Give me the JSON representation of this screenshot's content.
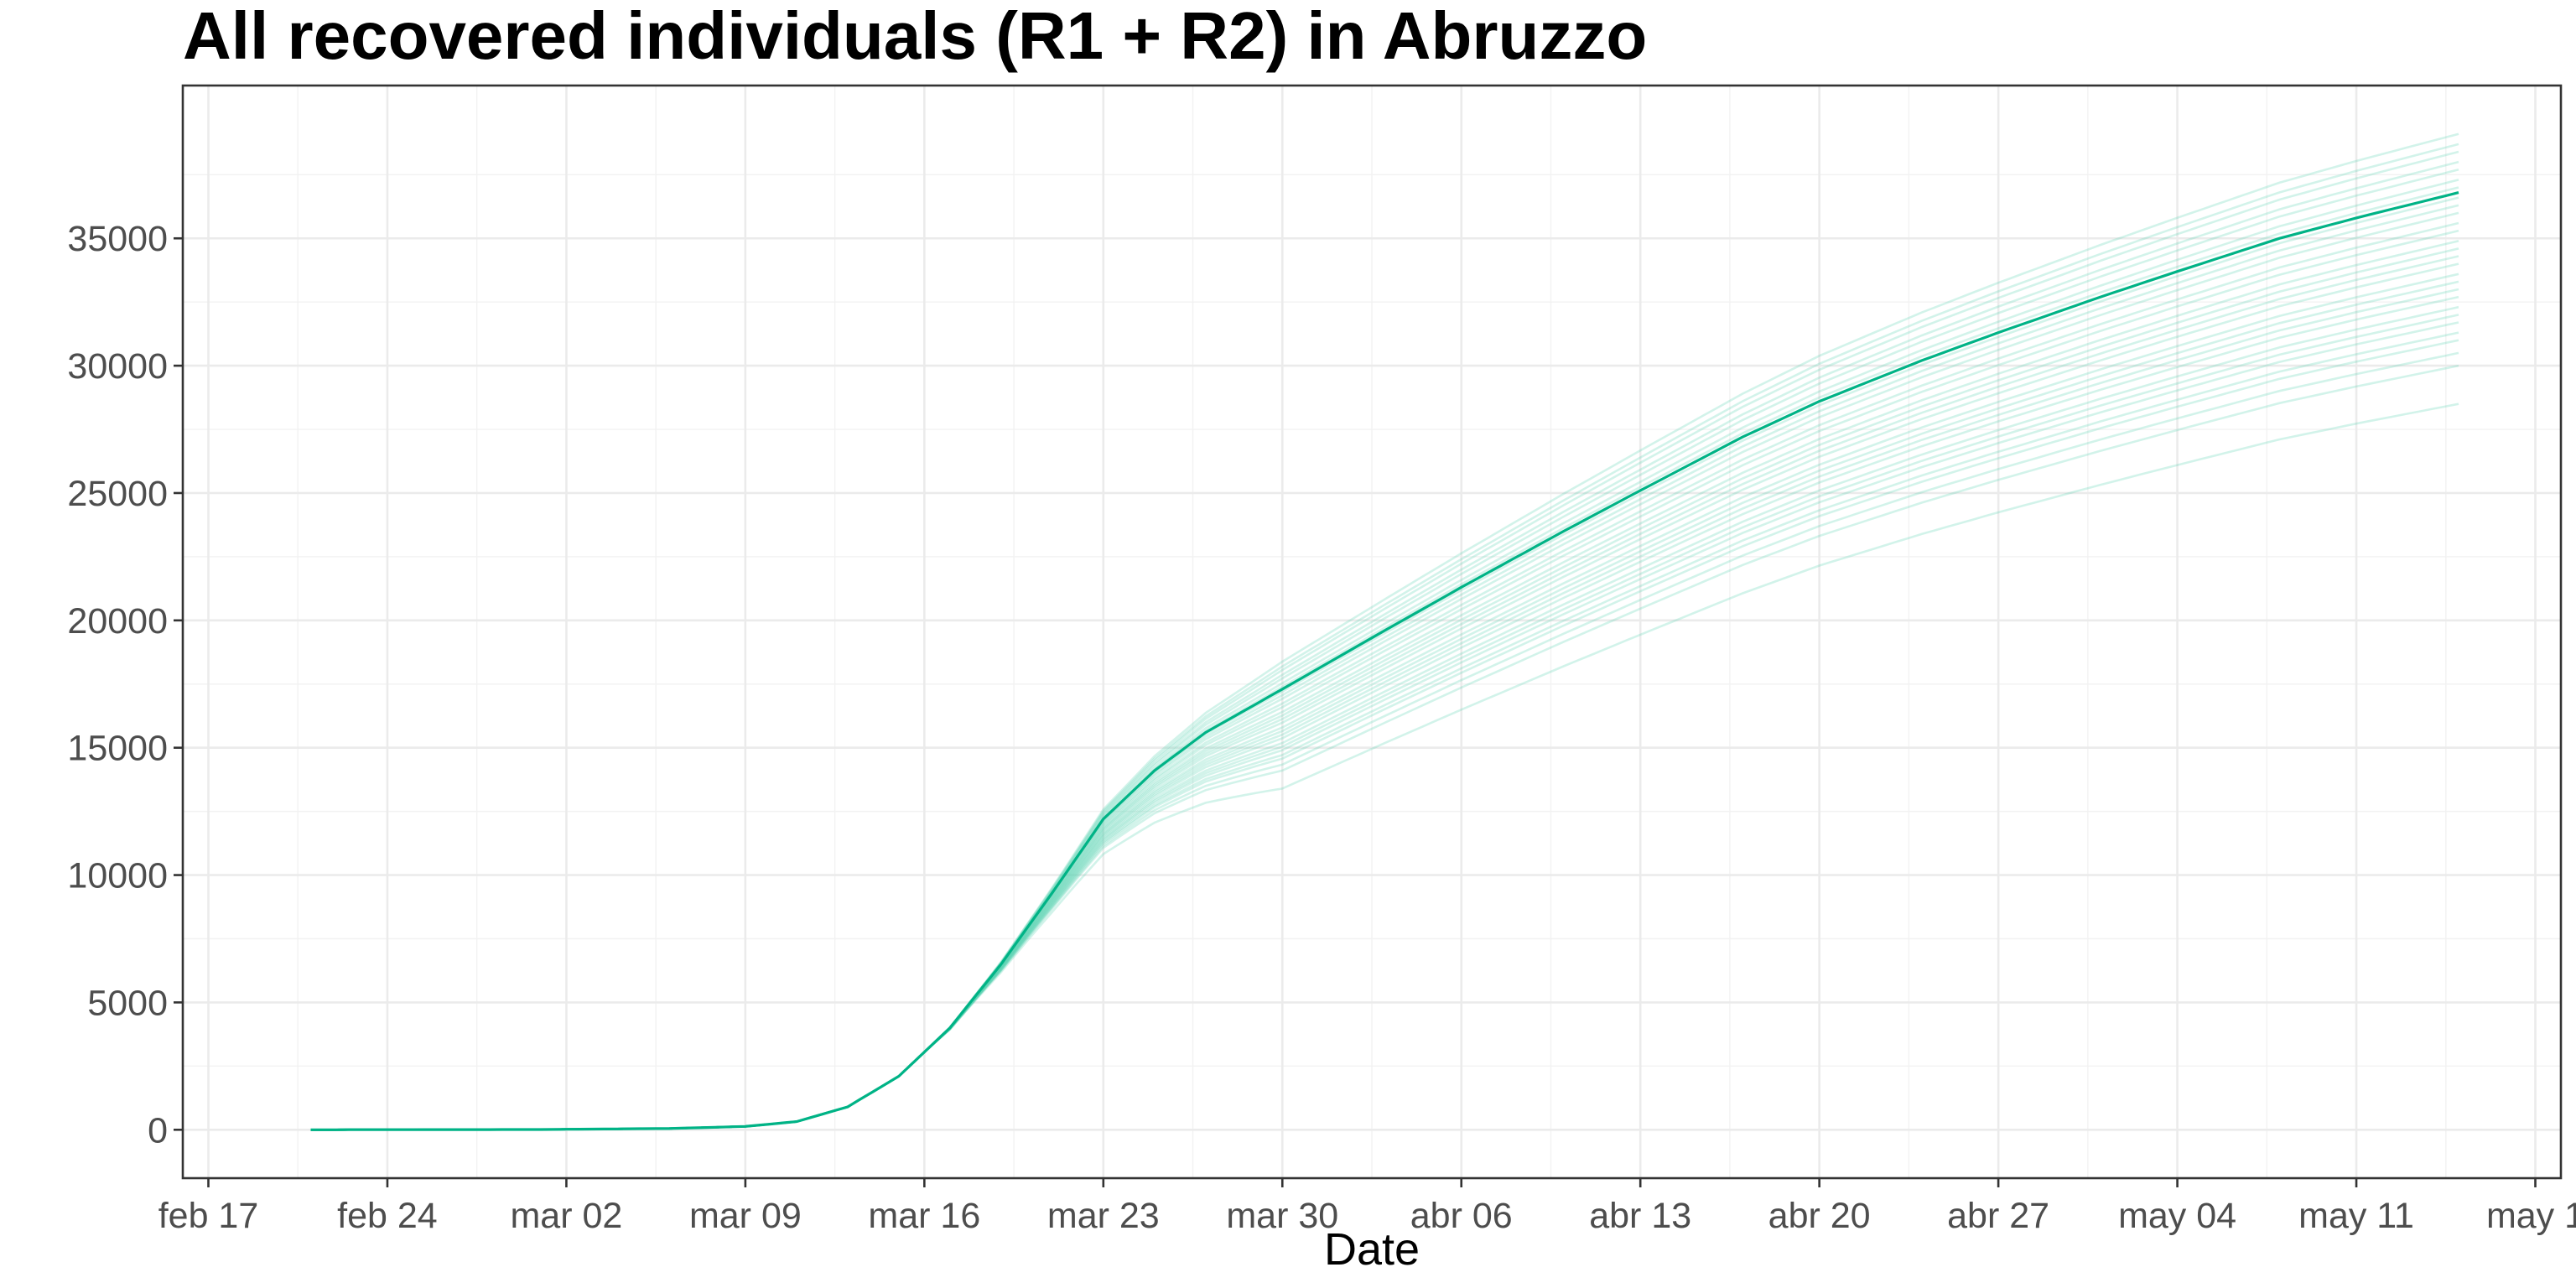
{
  "chart_data": {
    "type": "line",
    "title": "All recovered individuals (R1 + R2) in  Abruzzo",
    "xlabel": "Date",
    "ylabel": "",
    "x_axis": {
      "type": "date",
      "min": "2020-02-16",
      "max": "2020-05-19",
      "ticks": [
        {
          "date": "2020-02-17",
          "label": "feb 17"
        },
        {
          "date": "2020-02-24",
          "label": "feb 24"
        },
        {
          "date": "2020-03-02",
          "label": "mar 02"
        },
        {
          "date": "2020-03-09",
          "label": "mar 09"
        },
        {
          "date": "2020-03-16",
          "label": "mar 16"
        },
        {
          "date": "2020-03-23",
          "label": "mar 23"
        },
        {
          "date": "2020-03-30",
          "label": "mar 30"
        },
        {
          "date": "2020-04-06",
          "label": "abr 06"
        },
        {
          "date": "2020-04-13",
          "label": "abr 13"
        },
        {
          "date": "2020-04-20",
          "label": "abr 20"
        },
        {
          "date": "2020-04-27",
          "label": "abr 27"
        },
        {
          "date": "2020-05-04",
          "label": "may 04"
        },
        {
          "date": "2020-05-11",
          "label": "may 11"
        },
        {
          "date": "2020-05-18",
          "label": "may 1"
        }
      ]
    },
    "y_axis": {
      "min": -1900,
      "max": 41000,
      "ticks": [
        0,
        5000,
        10000,
        15000,
        20000,
        25000,
        30000,
        35000
      ]
    },
    "grid": true,
    "legend": "none",
    "line_color": "#00b386",
    "ensemble_color": "#5fd3b4",
    "central_series": {
      "points": [
        [
          "2020-02-21",
          0
        ],
        [
          "2020-03-01",
          10
        ],
        [
          "2020-03-06",
          50
        ],
        [
          "2020-03-09",
          130
        ],
        [
          "2020-03-11",
          320
        ],
        [
          "2020-03-13",
          900
        ],
        [
          "2020-03-15",
          2100
        ],
        [
          "2020-03-17",
          4000
        ],
        [
          "2020-03-19",
          6500
        ],
        [
          "2020-03-21",
          9300
        ],
        [
          "2020-03-23",
          12200
        ],
        [
          "2020-03-25",
          14100
        ],
        [
          "2020-03-27",
          15600
        ],
        [
          "2020-03-30",
          17300
        ],
        [
          "2020-04-03",
          19600
        ],
        [
          "2020-04-06",
          21300
        ],
        [
          "2020-04-10",
          23500
        ],
        [
          "2020-04-13",
          25100
        ],
        [
          "2020-04-17",
          27200
        ],
        [
          "2020-04-20",
          28600
        ],
        [
          "2020-04-24",
          30200
        ],
        [
          "2020-04-27",
          31300
        ],
        [
          "2020-05-01",
          32700
        ],
        [
          "2020-05-04",
          33700
        ],
        [
          "2020-05-08",
          35000
        ],
        [
          "2020-05-11",
          35800
        ],
        [
          "2020-05-15",
          36800
        ]
      ]
    },
    "ensemble_end_values": [
      28500,
      30000,
      30500,
      31000,
      31300,
      31700,
      32000,
      32300,
      32700,
      33000,
      33300,
      33600,
      34000,
      34300,
      34600,
      34900,
      35300,
      35600,
      36000,
      36300,
      36600,
      37000,
      37300,
      37700,
      38000,
      38400,
      38700,
      39100
    ]
  }
}
